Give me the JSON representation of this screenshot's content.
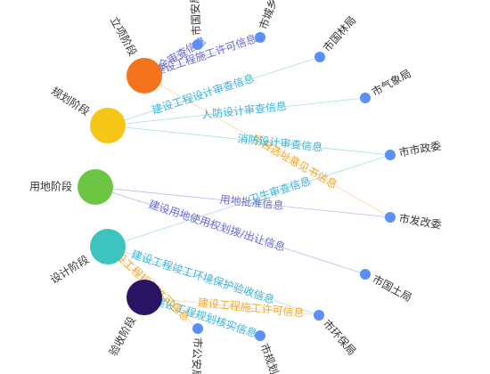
{
  "stages": [
    {
      "label": "立项阶段",
      "color": "#f5731c"
    },
    {
      "label": "规划阶段",
      "color": "#f5c518"
    },
    {
      "label": "用地阶段",
      "color": "#6cc644"
    },
    {
      "label": "设计阶段",
      "color": "#3cc4c0"
    },
    {
      "label": "验收阶段",
      "color": "#2b1466"
    }
  ],
  "agencies": [
    {
      "label": "市国安局"
    },
    {
      "label": "市城乡"
    },
    {
      "label": "市国林局"
    },
    {
      "label": "市气象局"
    },
    {
      "label": "市市政委"
    },
    {
      "label": "市发改委"
    },
    {
      "label": "市国土局"
    },
    {
      "label": "市环保局"
    },
    {
      "label": "市规划"
    },
    {
      "label": "市公安局"
    }
  ],
  "agency_color": "#5b8ff9",
  "edges": [
    {
      "source": 0,
      "target": 0,
      "label": "国家安全审查信息",
      "color": "#6b6bd0"
    },
    {
      "source": 0,
      "target": 1,
      "label": "建设工程施工许可信息",
      "color": "#6b6bd0"
    },
    {
      "source": 0,
      "target": 5,
      "label": "项目选址意见书信息",
      "color": "#f5a623"
    },
    {
      "source": 1,
      "target": 2,
      "label": "建设工程设计审查信息",
      "color": "#3cb4d8"
    },
    {
      "source": 1,
      "target": 3,
      "label": "人防设计审查信息",
      "color": "#3cb4d8"
    },
    {
      "source": 1,
      "target": 4,
      "label": "消防设计审查信息",
      "color": "#3cb4d8"
    },
    {
      "source": 2,
      "target": 6,
      "label": "建设用地使用权划拨/出让信息",
      "color": "#6b6bd0"
    },
    {
      "source": 2,
      "target": 5,
      "label": "用地批准信息",
      "color": "#6b6bd0"
    },
    {
      "source": 3,
      "target": 4,
      "label": "卫生审查信息",
      "color": "#3cb4d8"
    },
    {
      "source": 3,
      "target": 7,
      "label": "建设工程竣工环境保护验收信息",
      "color": "#3cb4d8"
    },
    {
      "source": 4,
      "target": 8,
      "label": "建设工程规划核实信息",
      "color": "#3cb4d8"
    },
    {
      "source": 4,
      "target": 7,
      "label": "建设工程施工许可信息",
      "color": "#f5a623"
    },
    {
      "source": 3,
      "target": 9,
      "label": "建设工程规划许可信息",
      "color": "#f5a623"
    }
  ]
}
